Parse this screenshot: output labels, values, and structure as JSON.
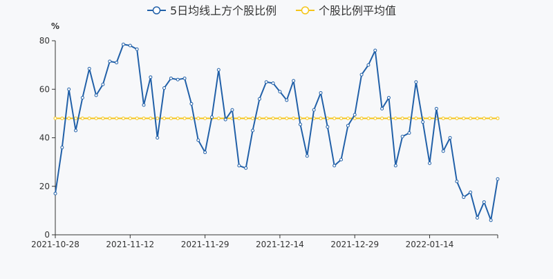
{
  "chart_data": {
    "type": "line",
    "unit_label": "%",
    "ylim": [
      0,
      80
    ],
    "y_ticks": [
      0,
      20,
      40,
      60,
      80
    ],
    "x_tick_labels": [
      "2021-10-28",
      "2021-11-12",
      "2021-11-29",
      "2021-12-14",
      "2021-12-29",
      "2022-01-14"
    ],
    "x_tick_indices": [
      0,
      11,
      22,
      33,
      44,
      55
    ],
    "grid": false,
    "legend_position": "top-center",
    "series": [
      {
        "name": "5日均线上方个股比例",
        "color": "#2160a8",
        "marker": "circle",
        "values": [
          17,
          36,
          60,
          43,
          56.5,
          68.5,
          57.5,
          62,
          71.5,
          71,
          78.5,
          78,
          76.5,
          53.5,
          65,
          40,
          60.5,
          64.5,
          64,
          64.5,
          54,
          39,
          34,
          48.5,
          68,
          47.5,
          51.5,
          28.5,
          27.5,
          43,
          56,
          63,
          62.5,
          59,
          55.5,
          63.5,
          45.5,
          32.5,
          51.5,
          58.5,
          44.5,
          28.5,
          31,
          45,
          49.5,
          66,
          70,
          76,
          52,
          56.5,
          28.5,
          40.5,
          42,
          63,
          46.5,
          29.5,
          52,
          34.5,
          40,
          22,
          15.5,
          17.5,
          7,
          13.5,
          6,
          23
        ]
      },
      {
        "name": "个股比例平均值",
        "color": "#f5c518",
        "marker": "circle",
        "values": [
          48,
          48,
          48,
          48,
          48,
          48,
          48,
          48,
          48,
          48,
          48,
          48,
          48,
          48,
          48,
          48,
          48,
          48,
          48,
          48,
          48,
          48,
          48,
          48,
          48,
          48,
          48,
          48,
          48,
          48,
          48,
          48,
          48,
          48,
          48,
          48,
          48,
          48,
          48,
          48,
          48,
          48,
          48,
          48,
          48,
          48,
          48,
          48,
          48,
          48,
          48,
          48,
          48,
          48,
          48,
          48,
          48,
          48,
          48,
          48,
          48,
          48,
          48,
          48,
          48,
          48
        ]
      }
    ]
  }
}
